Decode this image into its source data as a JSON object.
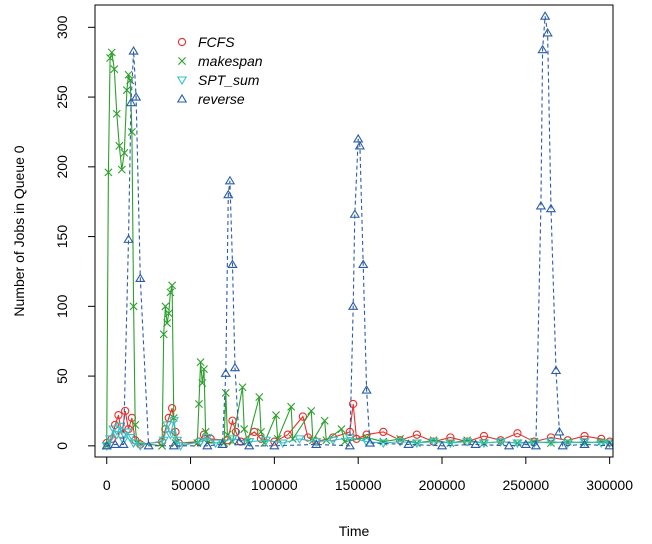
{
  "chart_data": {
    "type": "line",
    "xlabel": "Time",
    "ylabel": "Number of Jobs in Queue 0",
    "xlim": [
      -7000,
      302000
    ],
    "ylim": [
      -8,
      316
    ],
    "x_ticks": [
      0,
      50000,
      100000,
      150000,
      200000,
      250000,
      300000
    ],
    "x_tick_labels": [
      "0",
      "50000",
      "100000",
      "150000",
      "200000",
      "250000",
      "300000"
    ],
    "y_ticks": [
      0,
      50,
      100,
      150,
      200,
      250,
      300
    ],
    "y_tick_labels": [
      "0",
      "50",
      "100",
      "150",
      "200",
      "250",
      "300"
    ],
    "grid": false,
    "legend_position": "top-left",
    "series": [
      {
        "name": "FCFS",
        "color": "#e8302a",
        "marker": "circle",
        "line": "solid",
        "points": [
          [
            0,
            2
          ],
          [
            3000,
            5
          ],
          [
            5000,
            15
          ],
          [
            7000,
            22
          ],
          [
            9000,
            8
          ],
          [
            11000,
            25
          ],
          [
            13000,
            12
          ],
          [
            15000,
            20
          ],
          [
            17000,
            4
          ],
          [
            20000,
            1
          ],
          [
            33000,
            3
          ],
          [
            35000,
            12
          ],
          [
            37000,
            20
          ],
          [
            39000,
            27
          ],
          [
            41000,
            10
          ],
          [
            43000,
            2
          ],
          [
            55000,
            3
          ],
          [
            58000,
            8
          ],
          [
            62000,
            5
          ],
          [
            72000,
            4
          ],
          [
            75000,
            18
          ],
          [
            77000,
            10
          ],
          [
            80000,
            3
          ],
          [
            88000,
            10
          ],
          [
            92000,
            5
          ],
          [
            100000,
            3
          ],
          [
            108000,
            8
          ],
          [
            117000,
            21
          ],
          [
            120000,
            6
          ],
          [
            125000,
            3
          ],
          [
            135000,
            6
          ],
          [
            145000,
            10
          ],
          [
            147000,
            30
          ],
          [
            149000,
            5
          ],
          [
            155000,
            8
          ],
          [
            165000,
            10
          ],
          [
            175000,
            4
          ],
          [
            185000,
            8
          ],
          [
            195000,
            3
          ],
          [
            205000,
            6
          ],
          [
            215000,
            3
          ],
          [
            225000,
            7
          ],
          [
            235000,
            4
          ],
          [
            245000,
            9
          ],
          [
            255000,
            3
          ],
          [
            265000,
            6
          ],
          [
            275000,
            4
          ],
          [
            285000,
            7
          ],
          [
            295000,
            5
          ],
          [
            300000,
            3
          ]
        ]
      },
      {
        "name": "makespan",
        "color": "#2ca02c",
        "marker": "cross",
        "line": "solid",
        "points": [
          [
            0,
            0
          ],
          [
            1000,
            196
          ],
          [
            2000,
            278
          ],
          [
            3000,
            282
          ],
          [
            4500,
            270
          ],
          [
            6000,
            238
          ],
          [
            7500,
            215
          ],
          [
            9000,
            198
          ],
          [
            10500,
            210
          ],
          [
            12000,
            255
          ],
          [
            13000,
            266
          ],
          [
            14000,
            262
          ],
          [
            15000,
            225
          ],
          [
            16000,
            100
          ],
          [
            17000,
            15
          ],
          [
            18000,
            2
          ],
          [
            33000,
            0
          ],
          [
            34000,
            80
          ],
          [
            35000,
            100
          ],
          [
            36000,
            88
          ],
          [
            37000,
            95
          ],
          [
            38000,
            110
          ],
          [
            39000,
            115
          ],
          [
            40000,
            20
          ],
          [
            41000,
            2
          ],
          [
            54000,
            2
          ],
          [
            55000,
            30
          ],
          [
            56000,
            60
          ],
          [
            57000,
            45
          ],
          [
            58000,
            55
          ],
          [
            59000,
            10
          ],
          [
            60000,
            2
          ],
          [
            70000,
            2
          ],
          [
            71000,
            38
          ],
          [
            72000,
            8
          ],
          [
            75000,
            3
          ],
          [
            81000,
            42
          ],
          [
            82000,
            12
          ],
          [
            84000,
            3
          ],
          [
            91000,
            35
          ],
          [
            92000,
            10
          ],
          [
            94000,
            2
          ],
          [
            101000,
            22
          ],
          [
            102000,
            5
          ],
          [
            110000,
            28
          ],
          [
            111000,
            5
          ],
          [
            122000,
            25
          ],
          [
            123000,
            4
          ],
          [
            130000,
            18
          ],
          [
            131000,
            4
          ],
          [
            140000,
            12
          ],
          [
            142000,
            3
          ],
          [
            155000,
            6
          ],
          [
            165000,
            3
          ],
          [
            175000,
            5
          ],
          [
            185000,
            2
          ],
          [
            195000,
            4
          ],
          [
            205000,
            2
          ],
          [
            215000,
            4
          ],
          [
            225000,
            2
          ],
          [
            235000,
            3
          ],
          [
            245000,
            2
          ],
          [
            255000,
            3
          ],
          [
            265000,
            2
          ],
          [
            275000,
            3
          ],
          [
            285000,
            2
          ],
          [
            295000,
            3
          ],
          [
            300000,
            2
          ]
        ]
      },
      {
        "name": "SPT_sum",
        "color": "#36c2c6",
        "marker": "triangle-down",
        "line": "solid",
        "points": [
          [
            0,
            0
          ],
          [
            2000,
            5
          ],
          [
            4000,
            12
          ],
          [
            6000,
            8
          ],
          [
            8000,
            14
          ],
          [
            10000,
            4
          ],
          [
            12000,
            10
          ],
          [
            14000,
            6
          ],
          [
            16000,
            2
          ],
          [
            20000,
            0
          ],
          [
            34000,
            4
          ],
          [
            36000,
            15
          ],
          [
            38000,
            8
          ],
          [
            40000,
            18
          ],
          [
            42000,
            4
          ],
          [
            44000,
            0
          ],
          [
            56000,
            3
          ],
          [
            60000,
            6
          ],
          [
            65000,
            2
          ],
          [
            75000,
            5
          ],
          [
            85000,
            3
          ],
          [
            95000,
            4
          ],
          [
            105000,
            2
          ],
          [
            115000,
            5
          ],
          [
            125000,
            3
          ],
          [
            135000,
            4
          ],
          [
            145000,
            6
          ],
          [
            155000,
            3
          ],
          [
            165000,
            2
          ],
          [
            175000,
            3
          ],
          [
            185000,
            2
          ],
          [
            195000,
            3
          ],
          [
            205000,
            2
          ],
          [
            215000,
            3
          ],
          [
            225000,
            2
          ],
          [
            235000,
            3
          ],
          [
            245000,
            2
          ],
          [
            255000,
            2
          ],
          [
            265000,
            3
          ],
          [
            275000,
            2
          ],
          [
            285000,
            3
          ],
          [
            295000,
            2
          ],
          [
            300000,
            2
          ]
        ]
      },
      {
        "name": "reverse",
        "color": "#2a5caa",
        "marker": "triangle-up",
        "line": "dashed",
        "points": [
          [
            0,
            0
          ],
          [
            5000,
            1
          ],
          [
            10000,
            1
          ],
          [
            13000,
            148
          ],
          [
            14500,
            246
          ],
          [
            16000,
            283
          ],
          [
            17500,
            250
          ],
          [
            20000,
            120
          ],
          [
            25000,
            0
          ],
          [
            40000,
            0
          ],
          [
            60000,
            0
          ],
          [
            69000,
            1
          ],
          [
            71000,
            52
          ],
          [
            72500,
            180
          ],
          [
            73500,
            190
          ],
          [
            75000,
            130
          ],
          [
            76500,
            56
          ],
          [
            79000,
            3
          ],
          [
            85000,
            0
          ],
          [
            100000,
            0
          ],
          [
            125000,
            1
          ],
          [
            145000,
            0
          ],
          [
            147000,
            100
          ],
          [
            148000,
            166
          ],
          [
            150000,
            220
          ],
          [
            151000,
            215
          ],
          [
            153000,
            130
          ],
          [
            155000,
            40
          ],
          [
            157000,
            2
          ],
          [
            180000,
            1
          ],
          [
            200000,
            0
          ],
          [
            220000,
            1
          ],
          [
            240000,
            0
          ],
          [
            250000,
            1
          ],
          [
            256000,
            0
          ],
          [
            259000,
            172
          ],
          [
            260000,
            284
          ],
          [
            261500,
            308
          ],
          [
            263000,
            296
          ],
          [
            265000,
            170
          ],
          [
            268000,
            54
          ],
          [
            270000,
            10
          ],
          [
            272000,
            0
          ],
          [
            285000,
            1
          ],
          [
            300000,
            0
          ]
        ]
      }
    ]
  }
}
